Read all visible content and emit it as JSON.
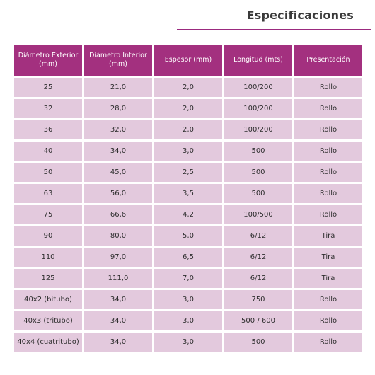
{
  "title": "Especificaciones",
  "colors": {
    "header_bg": "#a3307f",
    "cell_bg": "#e3c9dd",
    "rule": "#9b2a7f"
  },
  "table": {
    "headers": [
      "Diámetro Exterior (mm)",
      "Diámetro Interior (mm)",
      "Espesor (mm)",
      "Longitud (mts)",
      "Presentación"
    ],
    "rows": [
      [
        "25",
        "21,0",
        "2,0",
        "100/200",
        "Rollo"
      ],
      [
        "32",
        "28,0",
        "2,0",
        "100/200",
        "Rollo"
      ],
      [
        "36",
        "32,0",
        "2,0",
        "100/200",
        "Rollo"
      ],
      [
        "40",
        "34,0",
        "3,0",
        "500",
        "Rollo"
      ],
      [
        "50",
        "45,0",
        "2,5",
        "500",
        "Rollo"
      ],
      [
        "63",
        "56,0",
        "3,5",
        "500",
        "Rollo"
      ],
      [
        "75",
        "66,6",
        "4,2",
        "100/500",
        "Rollo"
      ],
      [
        "90",
        "80,0",
        "5,0",
        "6/12",
        "Tira"
      ],
      [
        "110",
        "97,0",
        "6,5",
        "6/12",
        "Tira"
      ],
      [
        "125",
        "111,0",
        "7,0",
        "6/12",
        "Tira"
      ],
      [
        "40x2 (bitubo)",
        "34,0",
        "3,0",
        "750",
        "Rollo"
      ],
      [
        "40x3 (tritubo)",
        "34,0",
        "3,0",
        "500 / 600",
        "Rollo"
      ],
      [
        "40x4 (cuatritubo)",
        "34,0",
        "3,0",
        "500",
        "Rollo"
      ]
    ]
  }
}
